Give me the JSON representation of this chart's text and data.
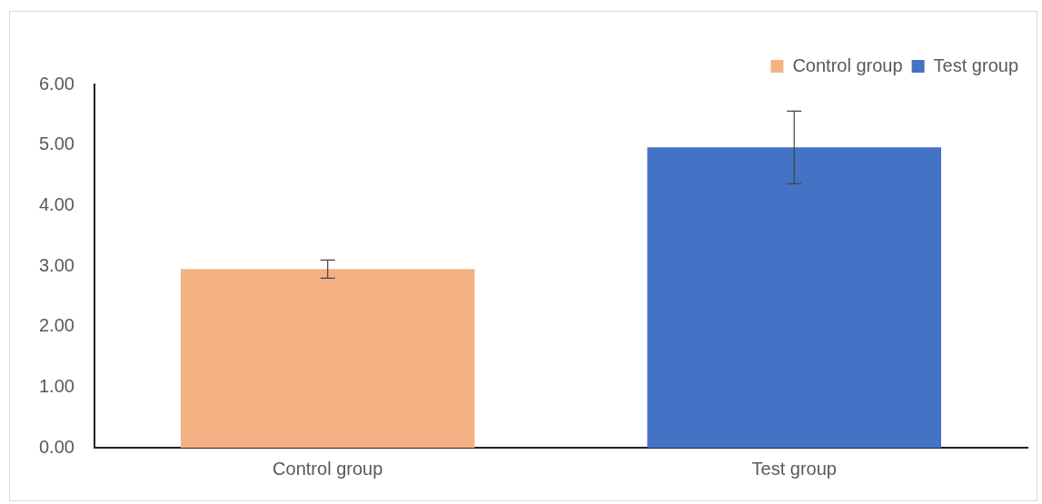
{
  "chart_data": {
    "type": "bar",
    "categories": [
      "Control group",
      "Test group"
    ],
    "series": [
      {
        "name": "Control group",
        "color": "#f4b183",
        "values": [
          2.95,
          null
        ],
        "errors": [
          0.15,
          null
        ]
      },
      {
        "name": "Test group",
        "color": "#4472c4",
        "values": [
          null,
          4.96
        ],
        "errors": [
          null,
          0.6
        ]
      }
    ],
    "ylim": [
      0,
      6
    ],
    "yticks": [
      {
        "value": 0,
        "label": "0.00"
      },
      {
        "value": 1,
        "label": "1.00"
      },
      {
        "value": 2,
        "label": "2.00"
      },
      {
        "value": 3,
        "label": "3.00"
      },
      {
        "value": 4,
        "label": "4.00"
      },
      {
        "value": 5,
        "label": "5.00"
      },
      {
        "value": 6,
        "label": "6.00"
      }
    ],
    "grid": false,
    "legend": "top right"
  }
}
